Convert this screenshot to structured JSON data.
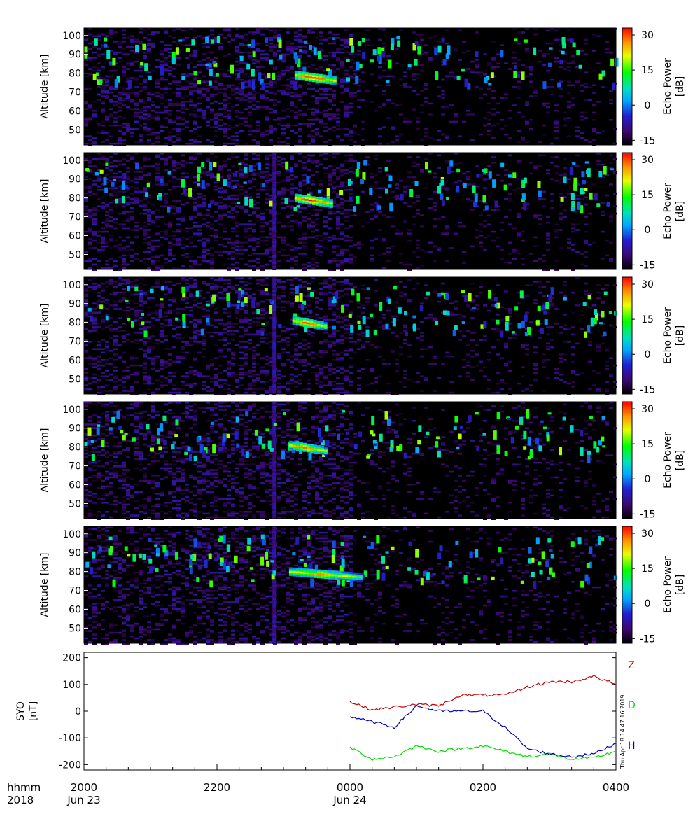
{
  "figure": {
    "stamp": "Thu Apr 18 14:47:16 2019",
    "time_axis": {
      "row1_label": "hhmm",
      "row2_label": "2018",
      "ticks": [
        {
          "value": "2000",
          "date": "Jun 23"
        },
        {
          "value": "2200",
          "date": ""
        },
        {
          "value": "0000",
          "date": "Jun 24"
        },
        {
          "value": "0200",
          "date": ""
        },
        {
          "value": "0400",
          "date": ""
        }
      ]
    }
  },
  "chart_data": [
    {
      "type": "heatmap",
      "panel": 1,
      "ylabel": "Altitude [km]",
      "ylim": [
        42,
        104
      ],
      "yticks": [
        50,
        60,
        70,
        80,
        90,
        100
      ],
      "colorbar": {
        "label": "Echo Power [dB]",
        "range": [
          -17,
          33
        ],
        "ticks": [
          30,
          15,
          0,
          -15
        ]
      },
      "time_range": [
        "2018-06-23 20:00",
        "2018-06-24 04:00"
      ],
      "echo_layer": {
        "altitude_km": 78,
        "start": "2018-06-23 23:10",
        "end": "2018-06-23 23:47",
        "peak_dB": 30
      },
      "upper_echoes_altitude_km": [
        75,
        100
      ]
    },
    {
      "type": "heatmap",
      "panel": 2,
      "ylabel": "Altitude [km]",
      "ylim": [
        42,
        104
      ],
      "yticks": [
        50,
        60,
        70,
        80,
        90,
        100
      ],
      "colorbar": {
        "label": "Echo Power [dB]",
        "range": [
          -17,
          33
        ],
        "ticks": [
          30,
          15,
          0,
          -15
        ]
      },
      "time_range": [
        "2018-06-23 20:00",
        "2018-06-24 04:00"
      ],
      "echo_layer": {
        "altitude_km": 79,
        "start": "2018-06-23 23:10",
        "end": "2018-06-23 23:43",
        "peak_dB": 30
      },
      "upper_echoes_altitude_km": [
        75,
        100
      ]
    },
    {
      "type": "heatmap",
      "panel": 3,
      "ylabel": "Altitude [km]",
      "ylim": [
        42,
        104
      ],
      "yticks": [
        50,
        60,
        70,
        80,
        90,
        100
      ],
      "colorbar": {
        "label": "Echo Power [dB]",
        "range": [
          -17,
          33
        ],
        "ticks": [
          30,
          15,
          0,
          -15
        ]
      },
      "time_range": [
        "2018-06-23 20:00",
        "2018-06-24 04:00"
      ],
      "echo_layer": {
        "altitude_km": 80,
        "start": "2018-06-23 23:08",
        "end": "2018-06-23 23:37",
        "peak_dB": 28
      },
      "upper_echoes_altitude_km": [
        75,
        100
      ]
    },
    {
      "type": "heatmap",
      "panel": 4,
      "ylabel": "Altitude [km]",
      "ylim": [
        42,
        104
      ],
      "yticks": [
        50,
        60,
        70,
        80,
        90,
        100
      ],
      "colorbar": {
        "label": "Echo Power [dB]",
        "range": [
          -17,
          33
        ],
        "ticks": [
          30,
          15,
          0,
          -15
        ]
      },
      "time_range": [
        "2018-06-23 20:00",
        "2018-06-24 04:00"
      ],
      "echo_layer": {
        "altitude_km": 80,
        "start": "2018-06-23 23:05",
        "end": "2018-06-23 23:37",
        "peak_dB": 27
      },
      "upper_echoes_altitude_km": [
        75,
        100
      ]
    },
    {
      "type": "heatmap",
      "panel": 5,
      "ylabel": "Altitude [km]",
      "ylim": [
        42,
        104
      ],
      "yticks": [
        50,
        60,
        70,
        80,
        90,
        100
      ],
      "colorbar": {
        "label": "Echo Power [dB]",
        "range": [
          -17,
          33
        ],
        "ticks": [
          30,
          15,
          0,
          -15
        ]
      },
      "time_range": [
        "2018-06-23 20:00",
        "2018-06-24 04:00"
      ],
      "echo_layer": {
        "altitude_km": 79,
        "start": "2018-06-23 23:05",
        "end": "2018-06-24 00:10",
        "peak_dB": 25
      },
      "upper_echoes_altitude_km": [
        75,
        100
      ]
    },
    {
      "type": "line",
      "panel": 6,
      "ylabel": "SYO [nT]",
      "ylim": [
        -220,
        220
      ],
      "yticks": [
        200,
        100,
        0,
        -100,
        -200
      ],
      "x": [
        "0000",
        "0020",
        "0040",
        "0100",
        "0120",
        "0140",
        "0200",
        "0220",
        "0240",
        "0300",
        "0320",
        "0340",
        "0400"
      ],
      "series": [
        {
          "name": "Z",
          "color": "#cc0000",
          "values": [
            35,
            5,
            15,
            25,
            20,
            60,
            60,
            60,
            90,
            110,
            110,
            130,
            100
          ]
        },
        {
          "name": "D",
          "color": "#00dd00",
          "values": [
            -135,
            -180,
            -170,
            -130,
            -150,
            -140,
            -130,
            -150,
            -170,
            -160,
            -180,
            -175,
            -150
          ]
        },
        {
          "name": "H",
          "color": "#0000bb",
          "values": [
            -20,
            -40,
            -60,
            20,
            0,
            0,
            0,
            -60,
            -140,
            -160,
            -170,
            -160,
            -120
          ]
        }
      ]
    }
  ]
}
